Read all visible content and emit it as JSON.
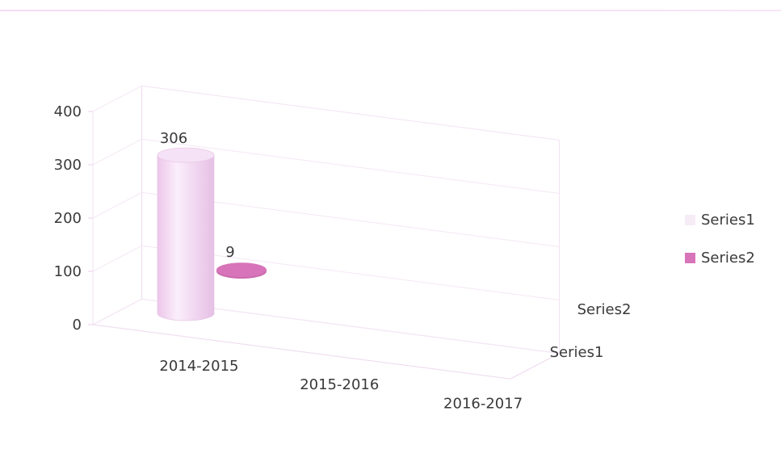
{
  "chart_data": {
    "type": "bar",
    "categories": [
      "2014-2015",
      "2015-2016",
      "2016-2017"
    ],
    "series": [
      {
        "name": "Series1",
        "values": [
          306,
          0,
          0
        ],
        "color": "#f2d6f1",
        "data_labels": [
          "306",
          null,
          null
        ]
      },
      {
        "name": "Series2",
        "values": [
          9,
          0,
          0
        ],
        "color": "#d874b9",
        "data_labels": [
          "9",
          null,
          null
        ]
      }
    ],
    "depth_labels": [
      "Series2",
      "Series1"
    ],
    "yticks": [
      "0",
      "100",
      "200",
      "300",
      "400"
    ],
    "ylim": [
      0,
      400
    ],
    "grid": true,
    "legend": "right",
    "style": "3d-cylinder"
  }
}
